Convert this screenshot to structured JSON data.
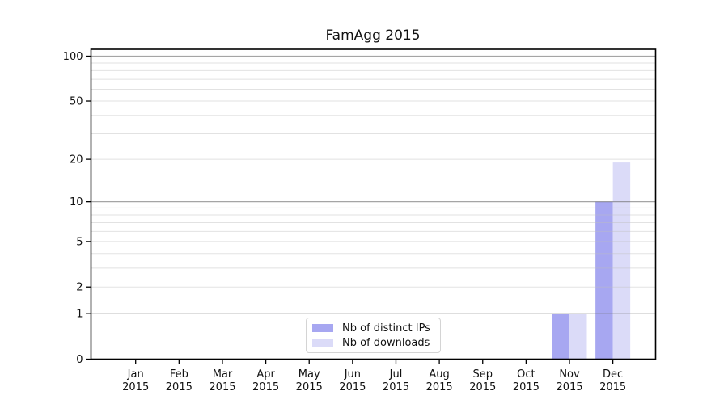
{
  "chart_data": {
    "type": "bar",
    "title": "FamAgg 2015",
    "x": {
      "categories": [
        "Jan",
        "Feb",
        "Mar",
        "Apr",
        "May",
        "Jun",
        "Jul",
        "Aug",
        "Sep",
        "Oct",
        "Nov",
        "Dec"
      ],
      "year_label": "2015"
    },
    "y_axis": {
      "scale": "log1p",
      "tick_values": [
        0,
        1,
        2,
        5,
        10,
        20,
        50,
        100
      ],
      "range": [
        0,
        100
      ]
    },
    "series": [
      {
        "name": "Nb of distinct IPs",
        "color": "#a7a7f1",
        "values": [
          0,
          0,
          0,
          0,
          0,
          0,
          0,
          0,
          0,
          0,
          1,
          10
        ]
      },
      {
        "name": "Nb of downloads",
        "color": "#dbdbf8",
        "values": [
          0,
          0,
          0,
          0,
          0,
          0,
          0,
          0,
          0,
          0,
          1,
          19
        ]
      }
    ],
    "gridlines": {
      "major_values": [
        1,
        10,
        100
      ],
      "minor_values": [
        2,
        3,
        4,
        5,
        6,
        7,
        8,
        9,
        20,
        30,
        40,
        50,
        60,
        70,
        80,
        90
      ],
      "major_color": "rgba(110,110,110,0.62)",
      "minor_color": "rgba(190,190,190,0.45)"
    },
    "legend": {
      "position": "lower center",
      "entries": [
        "Nb of distinct IPs",
        "Nb of downloads"
      ]
    }
  }
}
